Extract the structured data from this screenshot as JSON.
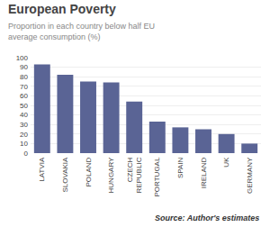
{
  "chart_data": {
    "type": "bar",
    "title": "European Poverty",
    "subtitle": "Proportion in each country below half EU\naverage consumption (%)",
    "categories": [
      "LATVIA",
      "SLOVAKIA",
      "POLAND",
      "HUNGARY",
      "CZECH\nREPUBLIC",
      "PORTUGAL",
      "SPAIN",
      "IRELAND",
      "UK",
      "GERMANY"
    ],
    "values": [
      93,
      82,
      75,
      74,
      54,
      33,
      27,
      25,
      20,
      10
    ],
    "color": "#5a6495",
    "ylim": [
      0,
      100
    ],
    "yticks": [
      0,
      10,
      20,
      30,
      40,
      50,
      60,
      70,
      80,
      90,
      100
    ],
    "grid": true,
    "annotations": [
      "Source: Author's estimates"
    ]
  }
}
